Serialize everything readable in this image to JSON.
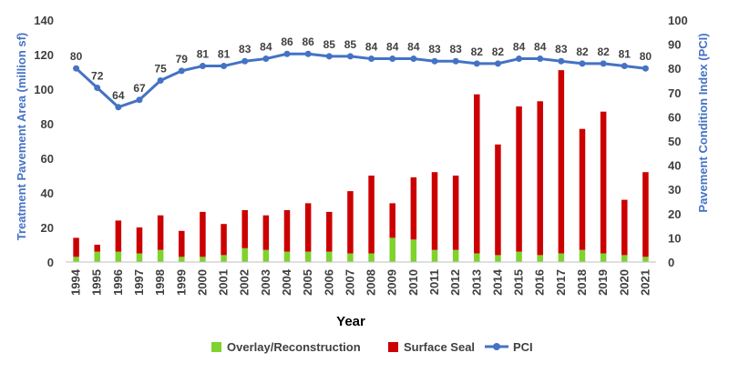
{
  "chart_data": {
    "type": "bar",
    "stacked": true,
    "categories": [
      "1994",
      "1995",
      "1996",
      "1997",
      "1998",
      "1999",
      "2000",
      "2001",
      "2002",
      "2003",
      "2004",
      "2005",
      "2006",
      "2007",
      "2008",
      "2009",
      "2010",
      "2011",
      "2012",
      "2013",
      "2014",
      "2015",
      "2016",
      "2017",
      "2018",
      "2019",
      "2020",
      "2021"
    ],
    "series": [
      {
        "name": "Overlay/Reconstruction",
        "axis": "left",
        "color": "#7ED32C",
        "values": [
          3,
          6,
          6,
          5,
          7,
          3,
          3,
          4,
          8,
          7,
          6,
          6,
          6,
          5,
          5,
          14,
          13,
          7,
          7,
          5,
          4,
          6,
          4,
          5,
          7,
          5,
          4,
          3
        ]
      },
      {
        "name": "Surface Seal",
        "axis": "left",
        "color": "#CC0000",
        "values": [
          11,
          4,
          18,
          15,
          20,
          15,
          26,
          18,
          22,
          20,
          24,
          28,
          23,
          36,
          45,
          20,
          36,
          45,
          43,
          92,
          64,
          84,
          89,
          106,
          70,
          82,
          32,
          49
        ]
      },
      {
        "name": "PCI",
        "axis": "right",
        "type": "line",
        "color": "#4472C4",
        "values": [
          80,
          72,
          64,
          67,
          75,
          79,
          81,
          81,
          83,
          84,
          86,
          86,
          85,
          85,
          84,
          84,
          84,
          83,
          83,
          82,
          82,
          84,
          84,
          83,
          82,
          82,
          81,
          80
        ]
      }
    ],
    "xlabel": "Year",
    "ylabel_left": "Treatment Pavement Area (million sf)",
    "ylabel_right": "Pavement Condition Index (PCI)",
    "ylim_left": [
      0,
      140
    ],
    "yticks_left": [
      0,
      20,
      40,
      60,
      80,
      100,
      120,
      140
    ],
    "ylim_right": [
      0,
      100
    ],
    "yticks_right": [
      0,
      10,
      20,
      30,
      40,
      50,
      60,
      70,
      80,
      90,
      100
    ],
    "grid": false,
    "legend_position": "bottom"
  }
}
